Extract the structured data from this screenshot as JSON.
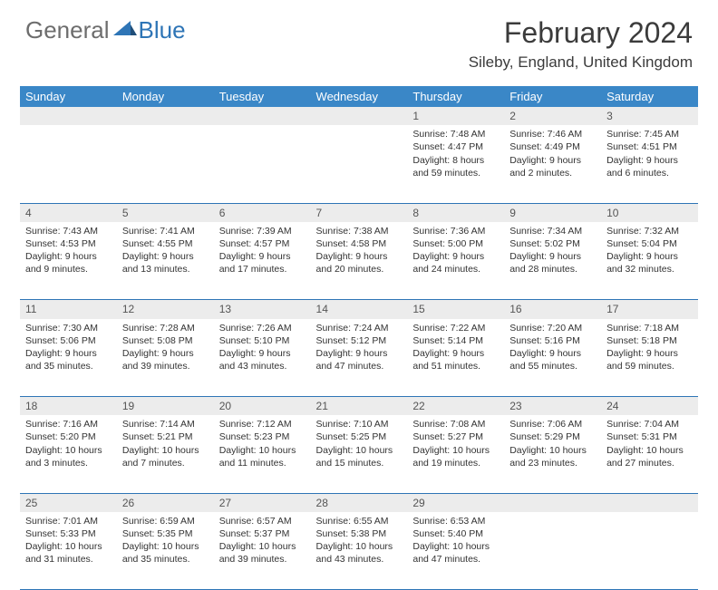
{
  "logo": {
    "general": "General",
    "blue": "Blue"
  },
  "title": "February 2024",
  "location": "Sileby, England, United Kingdom",
  "weekdays": [
    "Sunday",
    "Monday",
    "Tuesday",
    "Wednesday",
    "Thursday",
    "Friday",
    "Saturday"
  ],
  "colors": {
    "header_bg": "#3a87c7",
    "rule": "#2e75b6",
    "daynum_bg": "#ececec",
    "logo_gray": "#6d6d6d",
    "logo_blue": "#2e75b6"
  },
  "weeks": [
    [
      null,
      null,
      null,
      null,
      {
        "n": "1",
        "sr": "Sunrise: 7:48 AM",
        "ss": "Sunset: 4:47 PM",
        "d1": "Daylight: 8 hours",
        "d2": "and 59 minutes."
      },
      {
        "n": "2",
        "sr": "Sunrise: 7:46 AM",
        "ss": "Sunset: 4:49 PM",
        "d1": "Daylight: 9 hours",
        "d2": "and 2 minutes."
      },
      {
        "n": "3",
        "sr": "Sunrise: 7:45 AM",
        "ss": "Sunset: 4:51 PM",
        "d1": "Daylight: 9 hours",
        "d2": "and 6 minutes."
      }
    ],
    [
      {
        "n": "4",
        "sr": "Sunrise: 7:43 AM",
        "ss": "Sunset: 4:53 PM",
        "d1": "Daylight: 9 hours",
        "d2": "and 9 minutes."
      },
      {
        "n": "5",
        "sr": "Sunrise: 7:41 AM",
        "ss": "Sunset: 4:55 PM",
        "d1": "Daylight: 9 hours",
        "d2": "and 13 minutes."
      },
      {
        "n": "6",
        "sr": "Sunrise: 7:39 AM",
        "ss": "Sunset: 4:57 PM",
        "d1": "Daylight: 9 hours",
        "d2": "and 17 minutes."
      },
      {
        "n": "7",
        "sr": "Sunrise: 7:38 AM",
        "ss": "Sunset: 4:58 PM",
        "d1": "Daylight: 9 hours",
        "d2": "and 20 minutes."
      },
      {
        "n": "8",
        "sr": "Sunrise: 7:36 AM",
        "ss": "Sunset: 5:00 PM",
        "d1": "Daylight: 9 hours",
        "d2": "and 24 minutes."
      },
      {
        "n": "9",
        "sr": "Sunrise: 7:34 AM",
        "ss": "Sunset: 5:02 PM",
        "d1": "Daylight: 9 hours",
        "d2": "and 28 minutes."
      },
      {
        "n": "10",
        "sr": "Sunrise: 7:32 AM",
        "ss": "Sunset: 5:04 PM",
        "d1": "Daylight: 9 hours",
        "d2": "and 32 minutes."
      }
    ],
    [
      {
        "n": "11",
        "sr": "Sunrise: 7:30 AM",
        "ss": "Sunset: 5:06 PM",
        "d1": "Daylight: 9 hours",
        "d2": "and 35 minutes."
      },
      {
        "n": "12",
        "sr": "Sunrise: 7:28 AM",
        "ss": "Sunset: 5:08 PM",
        "d1": "Daylight: 9 hours",
        "d2": "and 39 minutes."
      },
      {
        "n": "13",
        "sr": "Sunrise: 7:26 AM",
        "ss": "Sunset: 5:10 PM",
        "d1": "Daylight: 9 hours",
        "d2": "and 43 minutes."
      },
      {
        "n": "14",
        "sr": "Sunrise: 7:24 AM",
        "ss": "Sunset: 5:12 PM",
        "d1": "Daylight: 9 hours",
        "d2": "and 47 minutes."
      },
      {
        "n": "15",
        "sr": "Sunrise: 7:22 AM",
        "ss": "Sunset: 5:14 PM",
        "d1": "Daylight: 9 hours",
        "d2": "and 51 minutes."
      },
      {
        "n": "16",
        "sr": "Sunrise: 7:20 AM",
        "ss": "Sunset: 5:16 PM",
        "d1": "Daylight: 9 hours",
        "d2": "and 55 minutes."
      },
      {
        "n": "17",
        "sr": "Sunrise: 7:18 AM",
        "ss": "Sunset: 5:18 PM",
        "d1": "Daylight: 9 hours",
        "d2": "and 59 minutes."
      }
    ],
    [
      {
        "n": "18",
        "sr": "Sunrise: 7:16 AM",
        "ss": "Sunset: 5:20 PM",
        "d1": "Daylight: 10 hours",
        "d2": "and 3 minutes."
      },
      {
        "n": "19",
        "sr": "Sunrise: 7:14 AM",
        "ss": "Sunset: 5:21 PM",
        "d1": "Daylight: 10 hours",
        "d2": "and 7 minutes."
      },
      {
        "n": "20",
        "sr": "Sunrise: 7:12 AM",
        "ss": "Sunset: 5:23 PM",
        "d1": "Daylight: 10 hours",
        "d2": "and 11 minutes."
      },
      {
        "n": "21",
        "sr": "Sunrise: 7:10 AM",
        "ss": "Sunset: 5:25 PM",
        "d1": "Daylight: 10 hours",
        "d2": "and 15 minutes."
      },
      {
        "n": "22",
        "sr": "Sunrise: 7:08 AM",
        "ss": "Sunset: 5:27 PM",
        "d1": "Daylight: 10 hours",
        "d2": "and 19 minutes."
      },
      {
        "n": "23",
        "sr": "Sunrise: 7:06 AM",
        "ss": "Sunset: 5:29 PM",
        "d1": "Daylight: 10 hours",
        "d2": "and 23 minutes."
      },
      {
        "n": "24",
        "sr": "Sunrise: 7:04 AM",
        "ss": "Sunset: 5:31 PM",
        "d1": "Daylight: 10 hours",
        "d2": "and 27 minutes."
      }
    ],
    [
      {
        "n": "25",
        "sr": "Sunrise: 7:01 AM",
        "ss": "Sunset: 5:33 PM",
        "d1": "Daylight: 10 hours",
        "d2": "and 31 minutes."
      },
      {
        "n": "26",
        "sr": "Sunrise: 6:59 AM",
        "ss": "Sunset: 5:35 PM",
        "d1": "Daylight: 10 hours",
        "d2": "and 35 minutes."
      },
      {
        "n": "27",
        "sr": "Sunrise: 6:57 AM",
        "ss": "Sunset: 5:37 PM",
        "d1": "Daylight: 10 hours",
        "d2": "and 39 minutes."
      },
      {
        "n": "28",
        "sr": "Sunrise: 6:55 AM",
        "ss": "Sunset: 5:38 PM",
        "d1": "Daylight: 10 hours",
        "d2": "and 43 minutes."
      },
      {
        "n": "29",
        "sr": "Sunrise: 6:53 AM",
        "ss": "Sunset: 5:40 PM",
        "d1": "Daylight: 10 hours",
        "d2": "and 47 minutes."
      },
      null,
      null
    ]
  ]
}
